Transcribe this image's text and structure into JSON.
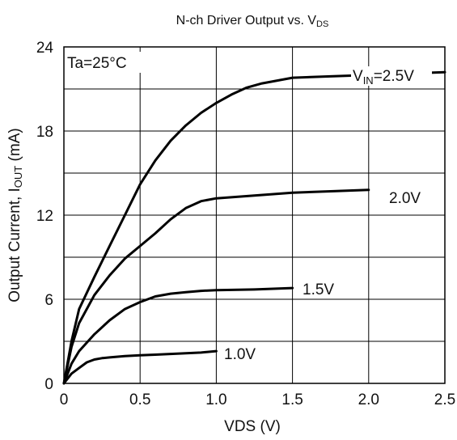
{
  "chart_data": {
    "type": "line",
    "title": "N-ch Driver Output vs. V",
    "title_sub": "DS",
    "xlabel": "VDS (V)",
    "ylabel": "Output Current, I",
    "ylabel_sub": "OUT",
    "ylabel_suffix": " (mA)",
    "xlim": [
      0,
      2.5
    ],
    "ylim": [
      0,
      24
    ],
    "grid": true,
    "x_ticks": [
      "0",
      "0.5",
      "1.0",
      "1.5",
      "2.0",
      "2.5"
    ],
    "y_ticks": [
      "0",
      "6",
      "12",
      "18",
      "24"
    ],
    "condition_label": "Ta=25°C",
    "series": [
      {
        "name": "V",
        "name_sub": "IN",
        "name_suffix": "=2.5V",
        "x": [
          0,
          0.05,
          0.1,
          0.2,
          0.3,
          0.4,
          0.5,
          0.6,
          0.7,
          0.8,
          0.9,
          1.0,
          1.1,
          1.2,
          1.3,
          1.4,
          1.5,
          1.75,
          2.0,
          2.25,
          2.5
        ],
        "values": [
          0,
          3.0,
          5.3,
          7.6,
          9.8,
          12.0,
          14.2,
          15.9,
          17.3,
          18.4,
          19.3,
          20.0,
          20.6,
          21.1,
          21.4,
          21.6,
          21.8,
          21.9,
          22.0,
          22.1,
          22.2
        ]
      },
      {
        "name": "2.0V",
        "x": [
          0,
          0.05,
          0.1,
          0.2,
          0.3,
          0.4,
          0.5,
          0.6,
          0.7,
          0.8,
          0.9,
          1.0,
          1.25,
          1.5,
          1.75,
          2.0
        ],
        "values": [
          0,
          2.6,
          4.3,
          6.3,
          7.7,
          8.9,
          9.8,
          10.7,
          11.7,
          12.5,
          13.0,
          13.2,
          13.4,
          13.6,
          13.7,
          13.8
        ]
      },
      {
        "name": "1.5V",
        "x": [
          0,
          0.05,
          0.1,
          0.2,
          0.3,
          0.4,
          0.5,
          0.6,
          0.7,
          0.8,
          0.9,
          1.0,
          1.25,
          1.5
        ],
        "values": [
          0,
          1.4,
          2.3,
          3.5,
          4.5,
          5.3,
          5.8,
          6.2,
          6.4,
          6.5,
          6.6,
          6.65,
          6.7,
          6.8
        ]
      },
      {
        "name": "1.0V",
        "x": [
          0,
          0.05,
          0.1,
          0.15,
          0.2,
          0.25,
          0.3,
          0.4,
          0.5,
          0.6,
          0.7,
          0.8,
          0.9,
          1.0
        ],
        "values": [
          0,
          0.7,
          1.1,
          1.5,
          1.7,
          1.8,
          1.85,
          1.95,
          2.0,
          2.05,
          2.1,
          2.15,
          2.2,
          2.3
        ]
      }
    ]
  }
}
